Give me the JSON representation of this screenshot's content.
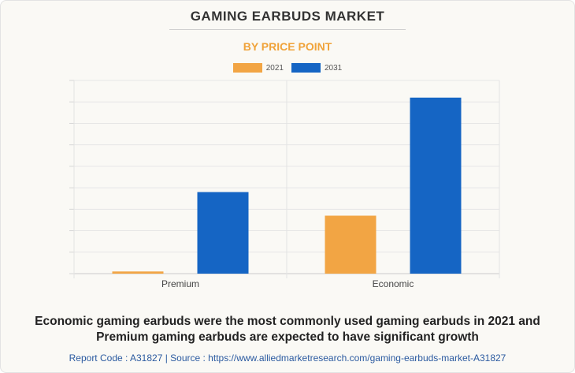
{
  "title": "GAMING EARBUDS MARKET",
  "subtitle": "BY PRICE POINT",
  "colors": {
    "2021": "#f2a544",
    "2031": "#1565c4",
    "subtitle": "#f0a33a"
  },
  "chart_data": {
    "type": "bar",
    "categories": [
      "Premium",
      "Economic"
    ],
    "series": [
      {
        "name": "2021",
        "values": [
          0.1,
          2.7
        ]
      },
      {
        "name": "2031",
        "values": [
          3.8,
          8.2
        ]
      }
    ],
    "ylim": [
      0,
      9
    ],
    "grid": true,
    "legend_position": "top-center"
  },
  "caption": {
    "line1": "Economic gaming earbuds were the most commonly used gaming earbuds in 2021 and",
    "line2": "Premium gaming earbuds are expected to have significant growth"
  },
  "source": "Report Code : A31827  |  Source : https://www.alliedmarketresearch.com/gaming-earbuds-market-A31827"
}
